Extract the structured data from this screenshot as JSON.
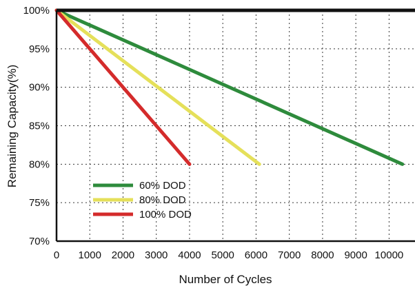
{
  "chart_data": {
    "type": "line",
    "xlabel": "Number of Cycles",
    "ylabel": "Remaining Capacity(%)",
    "xlim": [
      0,
      10800
    ],
    "ylim": [
      70,
      100
    ],
    "x_ticks": [
      "0",
      "1000",
      "2000",
      "3000",
      "4000",
      "5000",
      "6000",
      "7000",
      "8000",
      "9000",
      "10000"
    ],
    "x_tick_values": [
      0,
      1000,
      2000,
      3000,
      4000,
      5000,
      6000,
      7000,
      8000,
      9000,
      10000
    ],
    "y_ticks": [
      "70%",
      "75%",
      "80%",
      "85%",
      "90%",
      "95%",
      "100%"
    ],
    "y_tick_values": [
      70,
      75,
      80,
      85,
      90,
      95,
      100
    ],
    "grid": true,
    "legend_position": "bottom-left",
    "series": [
      {
        "name": "60% DOD",
        "color": "#2e8b3c",
        "points": [
          [
            0,
            100
          ],
          [
            10400,
            80
          ]
        ]
      },
      {
        "name": "80% DOD",
        "color": "#e5e05a",
        "points": [
          [
            0,
            100
          ],
          [
            6100,
            80
          ]
        ]
      },
      {
        "name": "100% DOD",
        "color": "#d42b2b",
        "points": [
          [
            0,
            100
          ],
          [
            4000,
            80
          ]
        ]
      }
    ]
  }
}
